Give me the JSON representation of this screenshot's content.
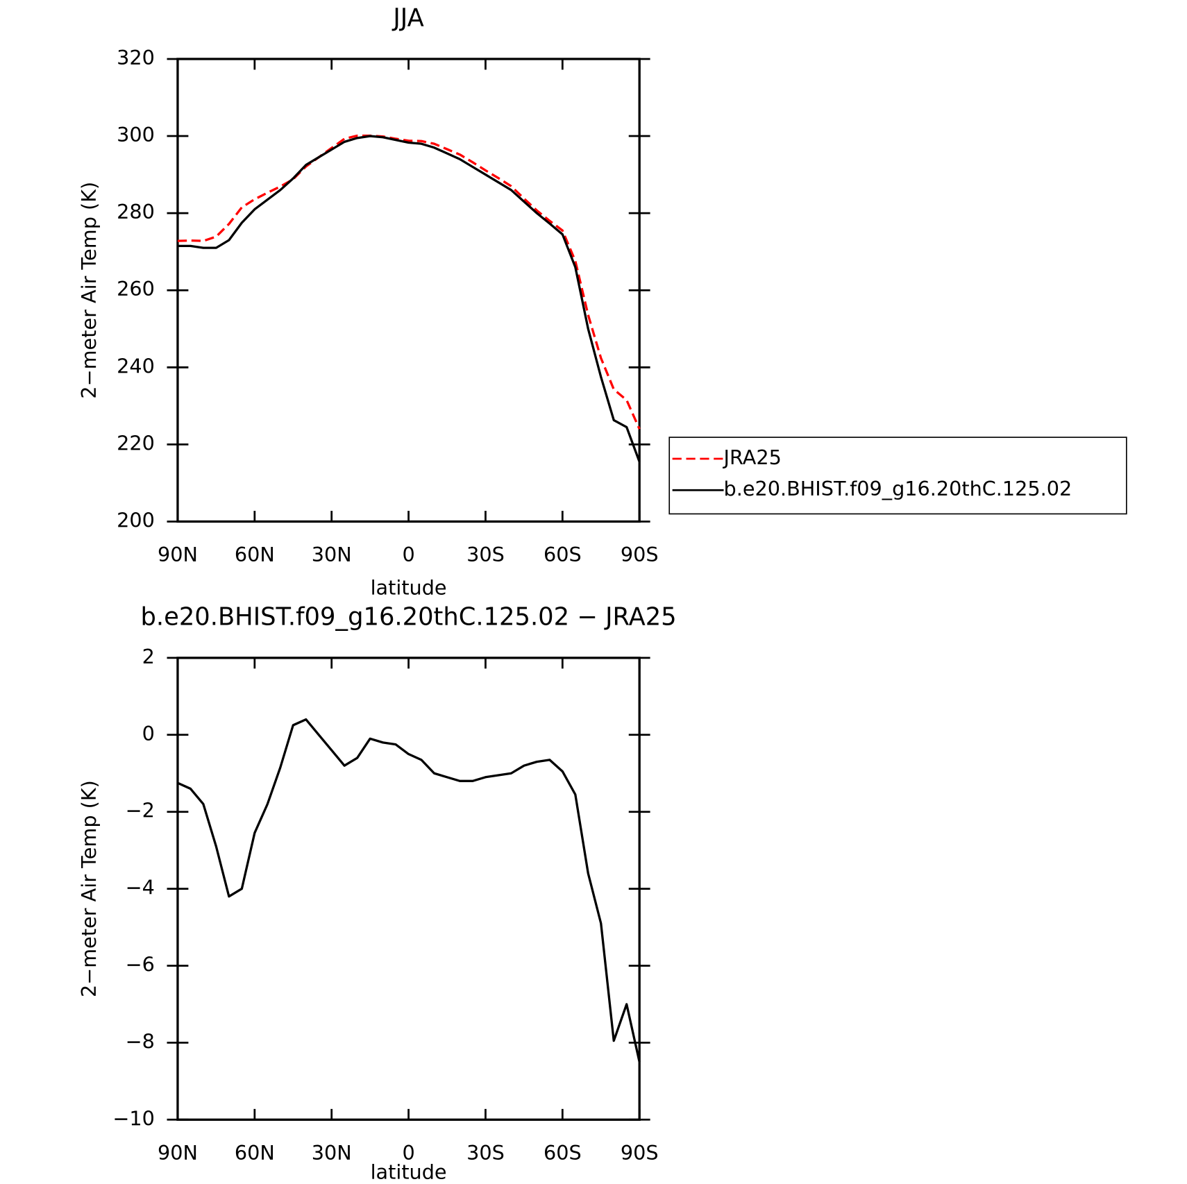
{
  "chart_data": [
    {
      "type": "line",
      "title": "JJA",
      "xlabel": "latitude",
      "ylabel": "2−meter Air Temp (K)",
      "x": [
        90,
        85,
        80,
        75,
        70,
        65,
        60,
        55,
        50,
        45,
        40,
        35,
        30,
        25,
        20,
        15,
        10,
        5,
        0,
        -5,
        -10,
        -15,
        -20,
        -25,
        -30,
        -35,
        -40,
        -45,
        -50,
        -55,
        -60,
        -65,
        -70,
        -75,
        -80,
        -85,
        -90
      ],
      "series": [
        {
          "name": "JRA25",
          "color": "#ff0000",
          "linestyle": "dashed",
          "values": [
            272.8,
            272.9,
            272.8,
            273.9,
            277.2,
            281.5,
            283.6,
            285.3,
            286.9,
            288.8,
            292.1,
            294.5,
            296.9,
            299.3,
            300.1,
            300.1,
            299.9,
            299.3,
            298.8,
            298.7,
            298.0,
            296.6,
            295.2,
            293.2,
            291.1,
            289.1,
            287.0,
            283.8,
            280.7,
            278.0,
            275.5,
            267.6,
            253.6,
            242.4,
            234.3,
            231.5,
            224.0
          ]
        },
        {
          "name": "b.e20.BHIST.f09_g16.20thC.125.02",
          "color": "#000000",
          "linestyle": "solid",
          "values": [
            271.5,
            271.5,
            271.0,
            271.0,
            273.0,
            277.5,
            281.0,
            283.5,
            286.0,
            289.0,
            292.5,
            294.5,
            296.5,
            298.5,
            299.5,
            300.0,
            299.7,
            299.0,
            298.3,
            298.0,
            297.0,
            295.5,
            294.0,
            292.0,
            290.0,
            288.0,
            286.0,
            283.0,
            280.0,
            277.3,
            274.5,
            266.0,
            250.0,
            237.5,
            226.3,
            224.5,
            215.5
          ]
        }
      ],
      "xlim": [
        90,
        -90
      ],
      "xticks": [
        {
          "value": 90,
          "label": "90N"
        },
        {
          "value": 60,
          "label": "60N"
        },
        {
          "value": 30,
          "label": "30N"
        },
        0,
        {
          "value": -30,
          "label": "30S"
        },
        {
          "value": -60,
          "label": "60S"
        },
        {
          "value": -90,
          "label": "90S"
        }
      ],
      "ylim": [
        200,
        320
      ],
      "yticks": [
        200,
        220,
        240,
        260,
        280,
        300,
        320
      ],
      "legend": "right"
    },
    {
      "type": "line",
      "title": "b.e20.BHIST.f09_g16.20thC.125.02 − JRA25",
      "xlabel": "latitude",
      "ylabel": "2−meter Air Temp (K)",
      "x": [
        90,
        85,
        80,
        75,
        70,
        65,
        60,
        55,
        50,
        45,
        40,
        35,
        30,
        25,
        20,
        15,
        10,
        5,
        0,
        -5,
        -10,
        -15,
        -20,
        -25,
        -30,
        -35,
        -40,
        -45,
        -50,
        -55,
        -60,
        -65,
        -70,
        -75,
        -80,
        -85,
        -90
      ],
      "series": [
        {
          "color": "#000000",
          "linestyle": "solid",
          "values": [
            -1.25,
            -1.4,
            -1.8,
            -2.9,
            -4.2,
            -4.0,
            -2.55,
            -1.8,
            -0.85,
            0.25,
            0.4,
            0.0,
            -0.4,
            -0.8,
            -0.6,
            -0.1,
            -0.2,
            -0.25,
            -0.5,
            -0.65,
            -1.0,
            -1.1,
            -1.2,
            -1.2,
            -1.1,
            -1.05,
            -1.0,
            -0.8,
            -0.7,
            -0.65,
            -0.95,
            -1.55,
            -3.6,
            -4.9,
            -7.95,
            -7.0,
            -8.5
          ]
        }
      ],
      "xlim": [
        90,
        -90
      ],
      "xticks": [
        {
          "value": 90,
          "label": "90N"
        },
        {
          "value": 60,
          "label": "60N"
        },
        {
          "value": 30,
          "label": "30N"
        },
        0,
        {
          "value": -30,
          "label": "30S"
        },
        {
          "value": -60,
          "label": "60S"
        },
        {
          "value": -90,
          "label": "90S"
        }
      ],
      "ylim": [
        -10,
        2
      ],
      "yticks": [
        {
          "value": -10,
          "label": "−10"
        },
        {
          "value": -8,
          "label": "−8"
        },
        {
          "value": -6,
          "label": "−6"
        },
        {
          "value": -4,
          "label": "−4"
        },
        {
          "value": -2,
          "label": "−2"
        },
        0,
        2
      ]
    }
  ]
}
